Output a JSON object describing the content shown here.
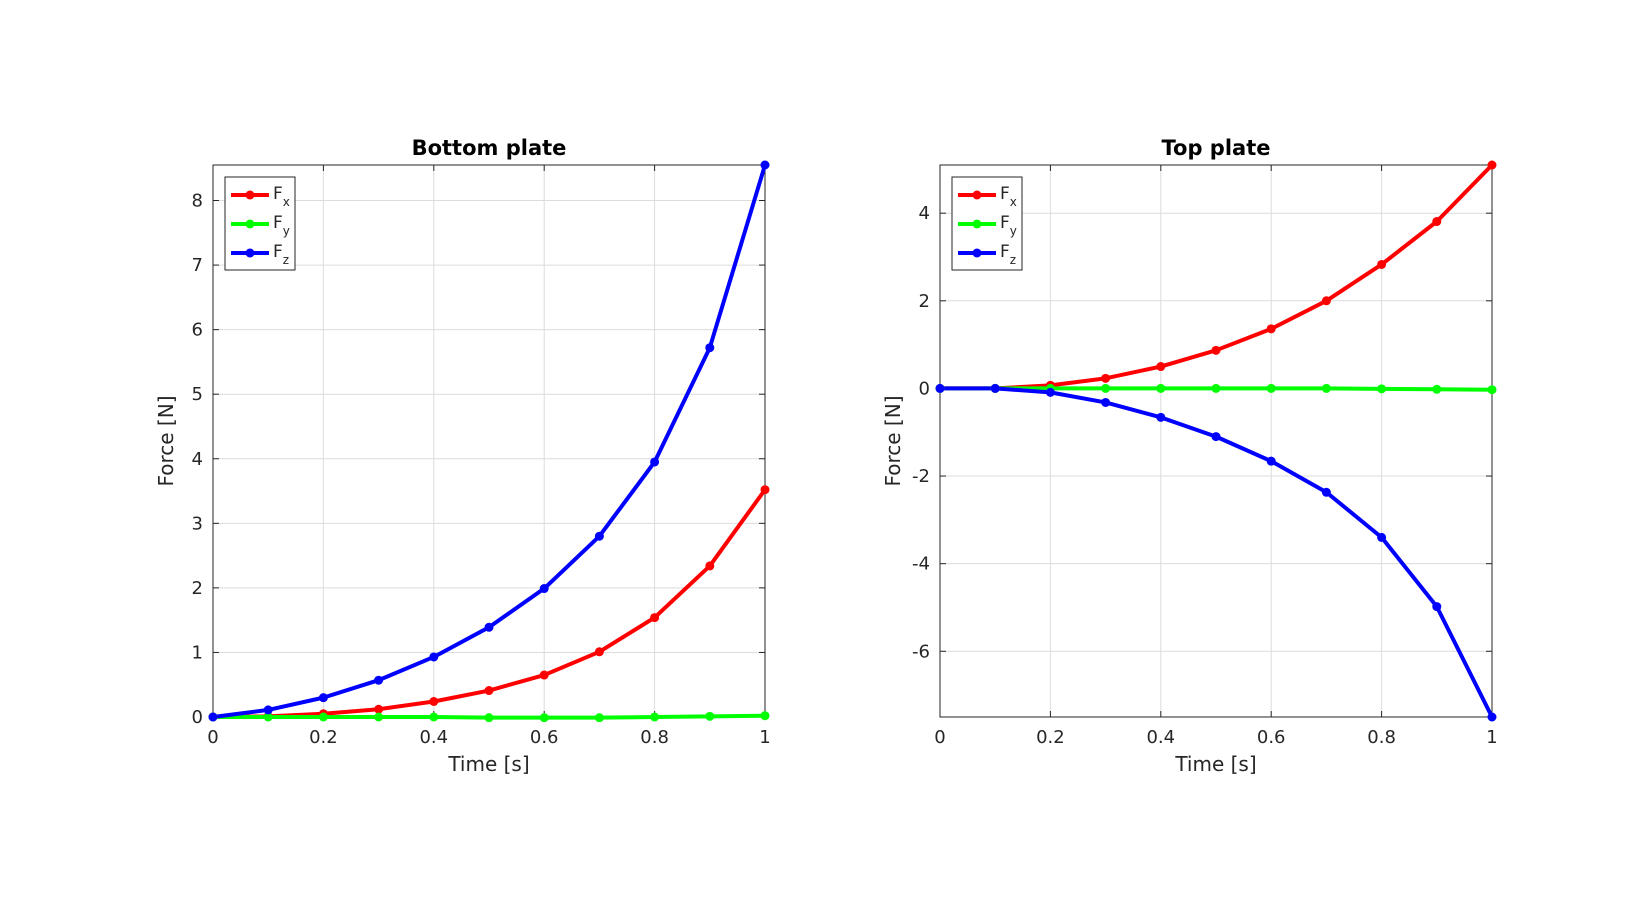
{
  "chart_data": [
    {
      "type": "line",
      "title": "Bottom plate",
      "xlabel": "Time [s]",
      "ylabel": "Force [N]",
      "xlim": [
        0,
        1
      ],
      "ylim": [
        0,
        8.55
      ],
      "xticks": [
        0,
        0.2,
        0.4,
        0.6,
        0.8,
        1
      ],
      "xtick_labels": [
        "0",
        "0.2",
        "0.4",
        "0.6",
        "0.8",
        "1"
      ],
      "yticks": [
        0,
        1,
        2,
        3,
        4,
        5,
        6,
        7,
        8
      ],
      "ytick_labels": [
        "0",
        "1",
        "2",
        "3",
        "4",
        "5",
        "6",
        "7",
        "8"
      ],
      "grid": true,
      "legend_position": "top-left",
      "x": [
        0,
        0.1,
        0.2,
        0.3,
        0.4,
        0.5,
        0.6,
        0.7,
        0.8,
        0.9,
        1.0
      ],
      "series": [
        {
          "name": "F",
          "subscript": "x",
          "color": "#ff0000",
          "values": [
            0,
            0.01,
            0.05,
            0.12,
            0.24,
            0.41,
            0.65,
            1.01,
            1.54,
            2.34,
            3.52
          ]
        },
        {
          "name": "F",
          "subscript": "y",
          "color": "#00ff00",
          "values": [
            0,
            0,
            0,
            0,
            0,
            -0.01,
            -0.01,
            -0.01,
            0,
            0.01,
            0.02
          ]
        },
        {
          "name": "F",
          "subscript": "z",
          "color": "#0000ff",
          "values": [
            0,
            0.11,
            0.3,
            0.57,
            0.93,
            1.39,
            1.99,
            2.8,
            3.95,
            5.72,
            8.55
          ]
        }
      ]
    },
    {
      "type": "line",
      "title": "Top plate",
      "xlabel": "Time [s]",
      "ylabel": "Force [N]",
      "xlim": [
        0,
        1
      ],
      "ylim": [
        -7.5,
        5.1
      ],
      "xticks": [
        0,
        0.2,
        0.4,
        0.6,
        0.8,
        1
      ],
      "xtick_labels": [
        "0",
        "0.2",
        "0.4",
        "0.6",
        "0.8",
        "1"
      ],
      "yticks": [
        -6,
        -4,
        -2,
        0,
        2,
        4
      ],
      "ytick_labels": [
        "-6",
        "-4",
        "-2",
        "0",
        "2",
        "4"
      ],
      "grid": true,
      "legend_position": "top-left",
      "x": [
        0,
        0.1,
        0.2,
        0.3,
        0.4,
        0.5,
        0.6,
        0.7,
        0.8,
        0.9,
        1.0
      ],
      "series": [
        {
          "name": "F",
          "subscript": "x",
          "color": "#ff0000",
          "values": [
            0,
            0,
            0.07,
            0.23,
            0.5,
            0.87,
            1.36,
            2.0,
            2.83,
            3.81,
            5.1
          ]
        },
        {
          "name": "F",
          "subscript": "y",
          "color": "#00ff00",
          "values": [
            0,
            0,
            0,
            0,
            0,
            0,
            0,
            0,
            -0.01,
            -0.02,
            -0.03
          ]
        },
        {
          "name": "F",
          "subscript": "z",
          "color": "#0000ff",
          "values": [
            0,
            0,
            -0.09,
            -0.32,
            -0.66,
            -1.1,
            -1.66,
            -2.37,
            -3.4,
            -4.98,
            -7.5
          ]
        }
      ]
    }
  ]
}
